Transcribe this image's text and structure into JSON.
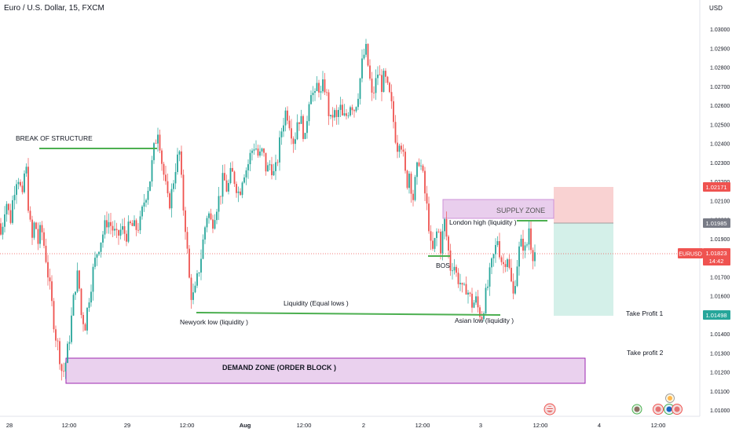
{
  "header": {
    "title": "Euro / U.S. Dollar, 15, FXCM",
    "currency": "USD"
  },
  "colors": {
    "up": "#26a69a",
    "down": "#ef5350",
    "annotation_line": "#4caf50",
    "zone_fill": "#e1bee7",
    "zone_border": "#9c27b0",
    "stop_zone": "#f8caca",
    "profit_zone": "#cfeee7"
  },
  "badges": {
    "stop_price": "1.02171",
    "entry_price": "1.01985",
    "current_symbol": "EURUSD",
    "current_price": "1.01823",
    "countdown": "14:42",
    "target_price": "1.01498"
  },
  "annotations": {
    "break_of_structure": "BREAK OF STRUCTURE",
    "supply_zone": "SUPPLY ZONE",
    "london_high": "London high (liquidity )",
    "bos": "BOS",
    "liquidity_equal_lows": "Liquidity (Equal lows )",
    "newyork_low": "Newyork low (liquidity )",
    "asian_low": "Asian low (liquidity )",
    "demand_zone": "DEMAND ZONE (ORDER BLOCK )",
    "take_profit_1": "Take Profit  1",
    "take_profit_2": "Take profit 2"
  },
  "chart_data": {
    "type": "candlestick",
    "symbol": "EURUSD",
    "timeframe": "15",
    "ylim": [
      1.01,
      1.031
    ],
    "y_ticks": [
      "1.03000",
      "1.02900",
      "1.02800",
      "1.02700",
      "1.02600",
      "1.02500",
      "1.02400",
      "1.02300",
      "1.02200",
      "1.02100",
      "1.02000",
      "1.01900",
      "1.01800",
      "1.01700",
      "1.01600",
      "1.01500",
      "1.01400",
      "1.01300",
      "1.01200",
      "1.01100",
      "1.01000"
    ],
    "x_ticks": [
      "28",
      "12:00",
      "29",
      "12:00",
      "Aug",
      "12:00",
      "2",
      "12:00",
      "3",
      "12:00",
      "4",
      "12:00"
    ],
    "price_path": [
      [
        0,
        1.0198
      ],
      [
        3,
        1.0191
      ],
      [
        7,
        1.0206
      ],
      [
        11,
        1.021
      ],
      [
        14,
        1.0197
      ],
      [
        19,
        1.0215
      ],
      [
        24,
        1.0225
      ],
      [
        30,
        1.021
      ],
      [
        34,
        1.0232
      ],
      [
        38,
        1.0205
      ],
      [
        42,
        1.0188
      ],
      [
        46,
        1.02
      ],
      [
        50,
        1.0188
      ],
      [
        54,
        1.0196
      ],
      [
        60,
        1.018
      ],
      [
        66,
        1.016
      ],
      [
        72,
        1.014
      ],
      [
        77,
        1.013
      ],
      [
        81,
        1.0118
      ],
      [
        85,
        1.0125
      ],
      [
        89,
        1.0135
      ],
      [
        93,
        1.015
      ],
      [
        97,
        1.0165
      ],
      [
        101,
        1.0172
      ],
      [
        105,
        1.015
      ],
      [
        110,
        1.0145
      ],
      [
        115,
        1.016
      ],
      [
        120,
        1.0173
      ],
      [
        126,
        1.0185
      ],
      [
        132,
        1.0192
      ],
      [
        138,
        1.02
      ],
      [
        144,
        1.0196
      ],
      [
        150,
        1.019
      ],
      [
        156,
        1.0195
      ],
      [
        162,
        1.0192
      ],
      [
        168,
        1.0197
      ],
      [
        174,
        1.0195
      ],
      [
        180,
        1.0198
      ],
      [
        186,
        1.0212
      ],
      [
        192,
        1.022
      ],
      [
        198,
        1.0238
      ],
      [
        203,
        1.0249
      ],
      [
        207,
        1.0232
      ],
      [
        212,
        1.0218
      ],
      [
        216,
        1.0207
      ],
      [
        220,
        1.0214
      ],
      [
        225,
        1.0228
      ],
      [
        230,
        1.0235
      ],
      [
        234,
        1.021
      ],
      [
        238,
        1.0195
      ],
      [
        242,
        1.017
      ],
      [
        246,
        1.0158
      ],
      [
        250,
        1.0162
      ],
      [
        254,
        1.0172
      ],
      [
        258,
        1.0182
      ],
      [
        262,
        1.0195
      ],
      [
        266,
        1.0205
      ],
      [
        271,
        1.0197
      ],
      [
        276,
        1.0206
      ],
      [
        281,
        1.0212
      ],
      [
        286,
        1.0222
      ],
      [
        291,
        1.0215
      ],
      [
        296,
        1.0225
      ],
      [
        301,
        1.022
      ],
      [
        306,
        1.0213
      ],
      [
        311,
        1.0225
      ],
      [
        316,
        1.0227
      ],
      [
        321,
        1.0235
      ],
      [
        326,
        1.024
      ],
      [
        331,
        1.0232
      ],
      [
        336,
        1.0236
      ],
      [
        341,
        1.0225
      ],
      [
        346,
        1.023
      ],
      [
        351,
        1.0222
      ],
      [
        356,
        1.0235
      ],
      [
        361,
        1.025
      ],
      [
        366,
        1.0258
      ],
      [
        371,
        1.025
      ],
      [
        376,
        1.024
      ],
      [
        381,
        1.0255
      ],
      [
        386,
        1.025
      ],
      [
        390,
        1.0241
      ],
      [
        394,
        1.0262
      ],
      [
        398,
        1.027
      ],
      [
        402,
        1.0262
      ],
      [
        406,
        1.0273
      ],
      [
        410,
        1.0265
      ],
      [
        414,
        1.0272
      ],
      [
        418,
        1.0263
      ],
      [
        422,
        1.025
      ],
      [
        426,
        1.0257
      ],
      [
        430,
        1.0252
      ],
      [
        434,
        1.026
      ],
      [
        438,
        1.0252
      ],
      [
        443,
        1.0255
      ],
      [
        448,
        1.0262
      ],
      [
        453,
        1.0258
      ],
      [
        458,
        1.0268
      ],
      [
        463,
        1.0283
      ],
      [
        467,
        1.029
      ],
      [
        471,
        1.0278
      ],
      [
        475,
        1.0264
      ],
      [
        479,
        1.027
      ],
      [
        483,
        1.0278
      ],
      [
        487,
        1.027
      ],
      [
        491,
        1.0275
      ],
      [
        495,
        1.0268
      ],
      [
        499,
        1.0262
      ],
      [
        503,
        1.025
      ],
      [
        507,
        1.0238
      ],
      [
        511,
        1.0245
      ],
      [
        515,
        1.0232
      ],
      [
        519,
        1.0218
      ],
      [
        523,
        1.0226
      ],
      [
        527,
        1.021
      ],
      [
        531,
        1.0222
      ],
      [
        535,
        1.0232
      ],
      [
        539,
        1.0225
      ],
      [
        543,
        1.0212
      ],
      [
        547,
        1.02
      ],
      [
        551,
        1.018
      ],
      [
        555,
        1.0188
      ],
      [
        559,
        1.0196
      ],
      [
        563,
        1.0184
      ],
      [
        567,
        1.02
      ],
      [
        571,
        1.0188
      ],
      [
        575,
        1.0175
      ],
      [
        579,
        1.0178
      ],
      [
        583,
        1.017
      ],
      [
        587,
        1.0168
      ],
      [
        591,
        1.016
      ],
      [
        595,
        1.0165
      ],
      [
        599,
        1.016
      ],
      [
        603,
        1.0155
      ],
      [
        607,
        1.0158
      ],
      [
        611,
        1.0152
      ],
      [
        615,
        1.015
      ],
      [
        619,
        1.0158
      ],
      [
        623,
        1.0166
      ],
      [
        627,
        1.0175
      ],
      [
        631,
        1.0182
      ],
      [
        635,
        1.019
      ],
      [
        639,
        1.018
      ],
      [
        643,
        1.0176
      ],
      [
        647,
        1.0183
      ],
      [
        651,
        1.017
      ],
      [
        655,
        1.016
      ],
      [
        659,
        1.0175
      ],
      [
        663,
        1.0185
      ],
      [
        667,
        1.0188
      ],
      [
        671,
        1.0182
      ],
      [
        675,
        1.0196
      ],
      [
        679,
        1.0182
      ],
      [
        681,
        1.0183
      ]
    ],
    "zones": {
      "supply_zone": {
        "top": 1.0211,
        "bottom": 1.01985
      },
      "demand_zone": {
        "top": 1.01275,
        "bottom": 1.0115
      },
      "stop_zone": {
        "top": 1.02171,
        "bottom": 1.01985
      },
      "profit_zone": {
        "top": 1.01985,
        "bottom": 1.01498
      }
    },
    "levels": {
      "current_price": 1.01823,
      "break_of_structure": 1.02435,
      "bos_level": 1.01835,
      "equal_lows": 1.01505,
      "london_high": 1.01993
    }
  }
}
